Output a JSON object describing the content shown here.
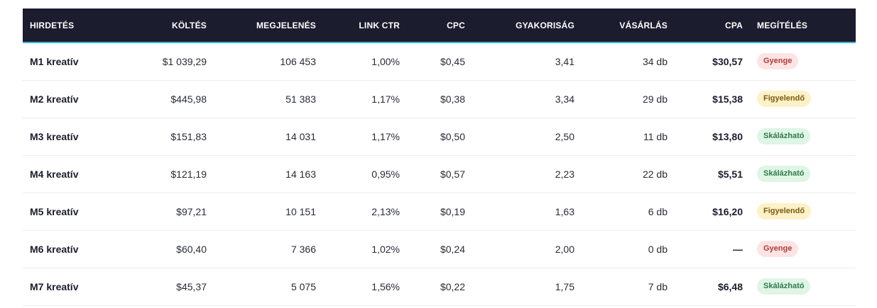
{
  "headers": [
    "HIRDETÉS",
    "KÖLTÉS",
    "MEGJELENÉS",
    "LINK CTR",
    "CPC",
    "GYAKORISÁG",
    "VÁSÁRLÁS",
    "CPA",
    "MEGÍTÉLÉS"
  ],
  "rows": [
    {
      "ad": "M1 kreatív",
      "spend": "$1 039,29",
      "impressions": "106 453",
      "ctr": "1,00%",
      "cpc": "$0,45",
      "freq": "3,41",
      "purchases": "34 db",
      "cpa": "$30,57",
      "rating": "Gyenge",
      "rating_kind": "weak"
    },
    {
      "ad": "M2 kreatív",
      "spend": "$445,98",
      "impressions": "51 383",
      "ctr": "1,17%",
      "cpc": "$0,38",
      "freq": "3,34",
      "purchases": "29 db",
      "cpa": "$15,38",
      "rating": "Figyelendő",
      "rating_kind": "watch"
    },
    {
      "ad": "M3 kreatív",
      "spend": "$151,83",
      "impressions": "14 031",
      "ctr": "1,17%",
      "cpc": "$0,50",
      "freq": "2,50",
      "purchases": "11 db",
      "cpa": "$13,80",
      "rating": "Skálázható",
      "rating_kind": "scale"
    },
    {
      "ad": "M4 kreatív",
      "spend": "$121,19",
      "impressions": "14 163",
      "ctr": "0,95%",
      "cpc": "$0,57",
      "freq": "2,23",
      "purchases": "22 db",
      "cpa": "$5,51",
      "rating": "Skálázható",
      "rating_kind": "scale"
    },
    {
      "ad": "M5 kreatív",
      "spend": "$97,21",
      "impressions": "10 151",
      "ctr": "2,13%",
      "cpc": "$0,19",
      "freq": "1,63",
      "purchases": "6 db",
      "cpa": "$16,20",
      "rating": "Figyelendő",
      "rating_kind": "watch"
    },
    {
      "ad": "M6 kreatív",
      "spend": "$60,40",
      "impressions": "7 366",
      "ctr": "1,02%",
      "cpc": "$0,24",
      "freq": "2,00",
      "purchases": "0 db",
      "cpa": "—",
      "rating": "Gyenge",
      "rating_kind": "weak"
    },
    {
      "ad": "M7 kreatív",
      "spend": "$45,37",
      "impressions": "5 075",
      "ctr": "1,56%",
      "cpc": "$0,22",
      "freq": "1,75",
      "purchases": "7 db",
      "cpa": "$6,48",
      "rating": "Skálázható",
      "rating_kind": "scale"
    }
  ],
  "colors": {
    "header_bg": "#1b1c2e",
    "header_accent": "#38b6d8",
    "weak_bg": "#fde4e4",
    "watch_bg": "#fdf1c8",
    "scale_bg": "#dff5e6"
  }
}
